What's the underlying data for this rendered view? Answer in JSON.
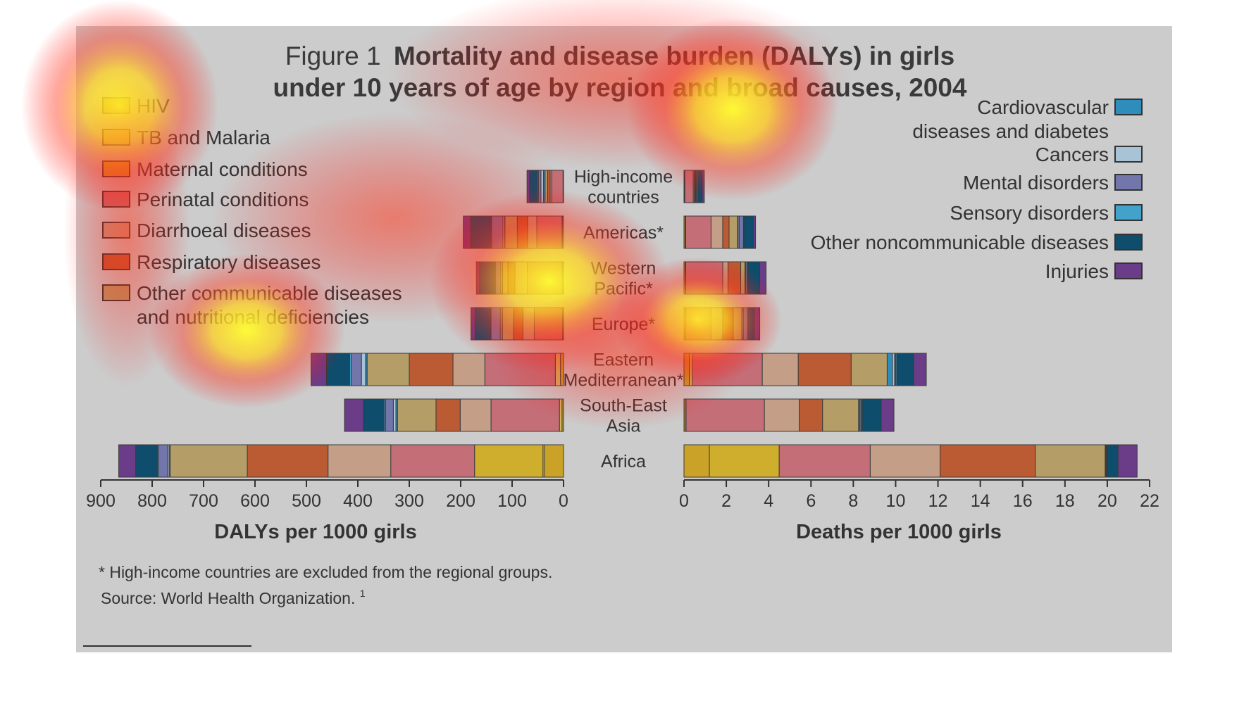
{
  "figure": {
    "title_prefix": "Figure 1",
    "title_line1": "Mortality and disease burden (DALYs) in girls",
    "title_line2": "under 10 years of age by region and broad causes, 2004",
    "footnote": "* High-income countries are excluded from the regional groups.",
    "source": "Source: World Health Organization.",
    "source_sup": "1",
    "background": "#cccccc"
  },
  "chart_data": [
    {
      "type": "bar",
      "orientation": "horizontal-stacked",
      "direction": "right-to-left",
      "title": "",
      "xlabel": "DALYs per 1000 girls",
      "ylabel": "",
      "xlim": [
        0,
        900
      ],
      "ticks": [
        900,
        800,
        700,
        600,
        500,
        400,
        300,
        200,
        100,
        0
      ],
      "categories": [
        "High-income countries",
        "Americas*",
        "Western Pacific*",
        "Europe*",
        "Eastern Mediterranean*",
        "South-East Asia",
        "Africa"
      ],
      "series": [
        {
          "name": "HIV",
          "color": "#c9a227",
          "values": [
            0.5,
            2,
            1.5,
            1.5,
            6,
            3,
            37
          ]
        },
        {
          "name": "TB and Malaria",
          "color": "#d2b85e",
          "values": [
            0.5,
            1,
            1,
            0.5,
            10,
            5,
            3
          ]
        },
        {
          "name": "Maternal conditions",
          "color": "#cfae2e",
          "values": [
            0,
            0,
            0,
            0,
            0,
            0,
            133
          ]
        },
        {
          "name": "Perinatal conditions",
          "color": "#c46f78",
          "values": [
            22,
            49,
            68,
            55,
            137,
            133,
            163
          ]
        },
        {
          "name": "Diarrhoeal diseases",
          "color": "#c49e86",
          "values": [
            3,
            18,
            24,
            22,
            62,
            60,
            122
          ]
        },
        {
          "name": "Respiratory diseases",
          "color": "#bb5b33",
          "values": [
            5,
            20,
            14,
            18,
            85,
            47,
            157
          ]
        },
        {
          "name": "Other communicable diseases and nutritional deficiencies",
          "color": "#b59d67",
          "values": [
            5,
            24,
            10,
            22,
            82,
            75,
            150
          ]
        },
        {
          "name": "Cardiovascular diseases and diabetes",
          "color": "#2f8dbb",
          "values": [
            3,
            1,
            1,
            1,
            3,
            3,
            2
          ]
        },
        {
          "name": "Cancers",
          "color": "#a9c3d6",
          "values": [
            5,
            3,
            3,
            3,
            8,
            5,
            3
          ]
        },
        {
          "name": "Mental disorders",
          "color": "#7276ab",
          "values": [
            5,
            22,
            10,
            18,
            20,
            15,
            18
          ]
        },
        {
          "name": "Sensory disorders",
          "color": "#43a2c9",
          "values": [
            2,
            1,
            1,
            1,
            3,
            3,
            2
          ]
        },
        {
          "name": "Other noncommunicable diseases",
          "color": "#0f4d6d",
          "values": [
            15,
            40,
            30,
            30,
            45,
            40,
            42
          ]
        },
        {
          "name": "Injuries",
          "color": "#6b3c87",
          "values": [
            5,
            14,
            6,
            8,
            30,
            37,
            33
          ]
        }
      ]
    },
    {
      "type": "bar",
      "orientation": "horizontal-stacked",
      "direction": "left-to-right",
      "title": "",
      "xlabel": "Deaths per 1000 girls",
      "ylabel": "",
      "xlim": [
        0,
        22
      ],
      "ticks": [
        0,
        2,
        4,
        6,
        8,
        10,
        12,
        14,
        16,
        18,
        20,
        22
      ],
      "categories": [
        "High-income countries",
        "Americas*",
        "Western Pacific*",
        "Europe*",
        "Eastern Mediterranean*",
        "South-East Asia",
        "Africa"
      ],
      "series": [
        {
          "name": "HIV",
          "color": "#c9a227",
          "values": [
            0.02,
            0.05,
            0.05,
            0.05,
            0.25,
            0.05,
            1.2
          ]
        },
        {
          "name": "TB and Malaria",
          "color": "#d2b85e",
          "values": [
            0.02,
            0.03,
            0.03,
            0.03,
            0.15,
            0.05,
            0
          ]
        },
        {
          "name": "Maternal conditions",
          "color": "#cfae2e",
          "values": [
            0,
            0,
            0,
            0,
            0,
            0,
            3.3
          ]
        },
        {
          "name": "Perinatal conditions",
          "color": "#c46f78",
          "values": [
            0.4,
            1.2,
            1.75,
            1.2,
            3.3,
            3.7,
            4.3
          ]
        },
        {
          "name": "Diarrhoeal diseases",
          "color": "#c49e86",
          "values": [
            0.05,
            0.55,
            0.25,
            0.55,
            1.7,
            1.65,
            3.3
          ]
        },
        {
          "name": "Respiratory diseases",
          "color": "#bb5b33",
          "values": [
            0.05,
            0.3,
            0.6,
            0.5,
            2.5,
            1.1,
            4.5
          ]
        },
        {
          "name": "Other communicable diseases and nutritional deficiencies",
          "color": "#b59d67",
          "values": [
            0.03,
            0.4,
            0.2,
            0.4,
            1.7,
            1.7,
            3.3
          ]
        },
        {
          "name": "Cardiovascular diseases and diabetes",
          "color": "#2f8dbb",
          "values": [
            0.02,
            0.03,
            0.03,
            0.03,
            0.25,
            0.05,
            0.03
          ]
        },
        {
          "name": "Cancers",
          "color": "#a9c3d6",
          "values": [
            0.05,
            0.05,
            0.05,
            0.05,
            0.1,
            0.05,
            0.03
          ]
        },
        {
          "name": "Mental disorders",
          "color": "#7276ab",
          "values": [
            0.02,
            0.2,
            0.05,
            0.2,
            0.05,
            0.05,
            0.03
          ]
        },
        {
          "name": "Sensory disorders",
          "color": "#43a2c9",
          "values": [
            0,
            0.02,
            0.02,
            0.02,
            0.05,
            0.02,
            0.02
          ]
        },
        {
          "name": "Other noncommunicable diseases",
          "color": "#0f4d6d",
          "values": [
            0.2,
            0.45,
            0.55,
            0.3,
            0.8,
            0.9,
            0.5
          ]
        },
        {
          "name": "Injuries",
          "color": "#6b3c87",
          "values": [
            0.1,
            0.1,
            0.3,
            0.25,
            0.6,
            0.6,
            0.9
          ]
        }
      ]
    }
  ],
  "legend_left": [
    {
      "label": "HIV",
      "color": "#c9a227"
    },
    {
      "label": "TB and Malaria",
      "color": "#d2b85e"
    },
    {
      "label": "Maternal conditions",
      "color": "#cfae2e"
    },
    {
      "label": "Perinatal conditions",
      "color": "#c46f78"
    },
    {
      "label": "Diarrhoeal diseases",
      "color": "#c49e86"
    },
    {
      "label": "Respiratory diseases",
      "color": "#bb5b33"
    },
    {
      "label": "Other communicable diseases",
      "label2": "and nutritional deficiencies",
      "color": "#b59d67"
    }
  ],
  "legend_right": [
    {
      "label": "Cardiovascular",
      "label2": "diseases and diabetes",
      "color": "#2f8dbb"
    },
    {
      "label": "Cancers",
      "color": "#a9c3d6"
    },
    {
      "label": "Mental disorders",
      "color": "#7276ab"
    },
    {
      "label": "Sensory disorders",
      "color": "#43a2c9"
    },
    {
      "label": "Other noncommunicable diseases",
      "color": "#0f4d6d"
    },
    {
      "label": "Injuries",
      "color": "#6b3c87"
    }
  ],
  "region_labels": [
    [
      "High-income",
      "countries"
    ],
    [
      "Americas*"
    ],
    [
      "Western",
      "Pacific*"
    ],
    [
      "Europe*"
    ],
    [
      "Eastern",
      "Mediterranean*"
    ],
    [
      "South-East",
      "Asia"
    ],
    [
      "Africa"
    ]
  ]
}
